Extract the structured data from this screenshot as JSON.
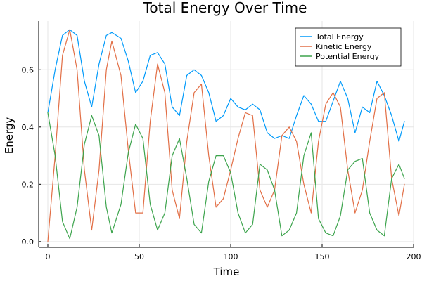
{
  "chart_data": {
    "type": "line",
    "title": "Total Energy Over Time",
    "xlabel": "Time",
    "ylabel": "Energy",
    "xlim": [
      -5,
      200
    ],
    "ylim": [
      -0.02,
      0.77
    ],
    "xticks": [
      0,
      50,
      100,
      150,
      200
    ],
    "yticks": [
      0.0,
      0.2,
      0.4,
      0.6
    ],
    "grid": true,
    "legend_position": "top-right",
    "series": [
      {
        "name": "Total Energy",
        "color": "#009AFA",
        "x": [
          0,
          4,
          8,
          12,
          16,
          20,
          24,
          28,
          32,
          35,
          40,
          44,
          48,
          52,
          56,
          60,
          64,
          68,
          72,
          76,
          80,
          84,
          88,
          92,
          96,
          100,
          104,
          108,
          112,
          116,
          120,
          124,
          128,
          132,
          136,
          140,
          144,
          148,
          152,
          156,
          160,
          164,
          168,
          172,
          176,
          180,
          184,
          188,
          192,
          195
        ],
        "y": [
          0.45,
          0.6,
          0.72,
          0.74,
          0.72,
          0.56,
          0.47,
          0.62,
          0.72,
          0.73,
          0.71,
          0.63,
          0.52,
          0.56,
          0.65,
          0.66,
          0.62,
          0.47,
          0.44,
          0.58,
          0.6,
          0.58,
          0.52,
          0.42,
          0.44,
          0.5,
          0.47,
          0.46,
          0.48,
          0.46,
          0.38,
          0.36,
          0.37,
          0.36,
          0.44,
          0.51,
          0.48,
          0.42,
          0.42,
          0.49,
          0.56,
          0.5,
          0.38,
          0.47,
          0.45,
          0.56,
          0.51,
          0.44,
          0.35,
          0.42
        ]
      },
      {
        "name": "Kinetic Energy",
        "color": "#E26F46",
        "x": [
          0,
          4,
          8,
          12,
          16,
          20,
          24,
          28,
          32,
          35,
          40,
          44,
          48,
          52,
          56,
          60,
          64,
          68,
          72,
          76,
          80,
          84,
          88,
          92,
          96,
          100,
          104,
          108,
          112,
          116,
          120,
          124,
          128,
          132,
          136,
          140,
          144,
          148,
          152,
          156,
          160,
          164,
          168,
          172,
          176,
          180,
          184,
          188,
          192,
          195
        ],
        "y": [
          0.0,
          0.3,
          0.65,
          0.74,
          0.6,
          0.25,
          0.04,
          0.25,
          0.6,
          0.7,
          0.58,
          0.32,
          0.1,
          0.1,
          0.42,
          0.62,
          0.52,
          0.18,
          0.08,
          0.35,
          0.52,
          0.55,
          0.3,
          0.12,
          0.15,
          0.25,
          0.36,
          0.45,
          0.44,
          0.18,
          0.12,
          0.18,
          0.37,
          0.4,
          0.35,
          0.2,
          0.1,
          0.35,
          0.48,
          0.52,
          0.47,
          0.25,
          0.1,
          0.18,
          0.35,
          0.5,
          0.52,
          0.22,
          0.09,
          0.2
        ]
      },
      {
        "name": "Potential Energy",
        "color": "#3DA44D",
        "x": [
          0,
          4,
          8,
          12,
          16,
          20,
          24,
          28,
          32,
          35,
          40,
          44,
          48,
          52,
          56,
          60,
          64,
          68,
          72,
          76,
          80,
          84,
          88,
          92,
          96,
          100,
          104,
          108,
          112,
          116,
          120,
          124,
          128,
          132,
          136,
          140,
          144,
          148,
          152,
          156,
          160,
          164,
          168,
          172,
          176,
          180,
          184,
          188,
          192,
          195
        ],
        "y": [
          0.45,
          0.3,
          0.07,
          0.01,
          0.12,
          0.34,
          0.44,
          0.37,
          0.12,
          0.03,
          0.13,
          0.31,
          0.41,
          0.36,
          0.13,
          0.04,
          0.1,
          0.3,
          0.36,
          0.22,
          0.06,
          0.03,
          0.21,
          0.3,
          0.3,
          0.24,
          0.1,
          0.03,
          0.06,
          0.27,
          0.25,
          0.18,
          0.02,
          0.04,
          0.1,
          0.3,
          0.38,
          0.08,
          0.03,
          0.02,
          0.09,
          0.25,
          0.28,
          0.29,
          0.1,
          0.04,
          0.02,
          0.22,
          0.27,
          0.22
        ]
      }
    ]
  }
}
